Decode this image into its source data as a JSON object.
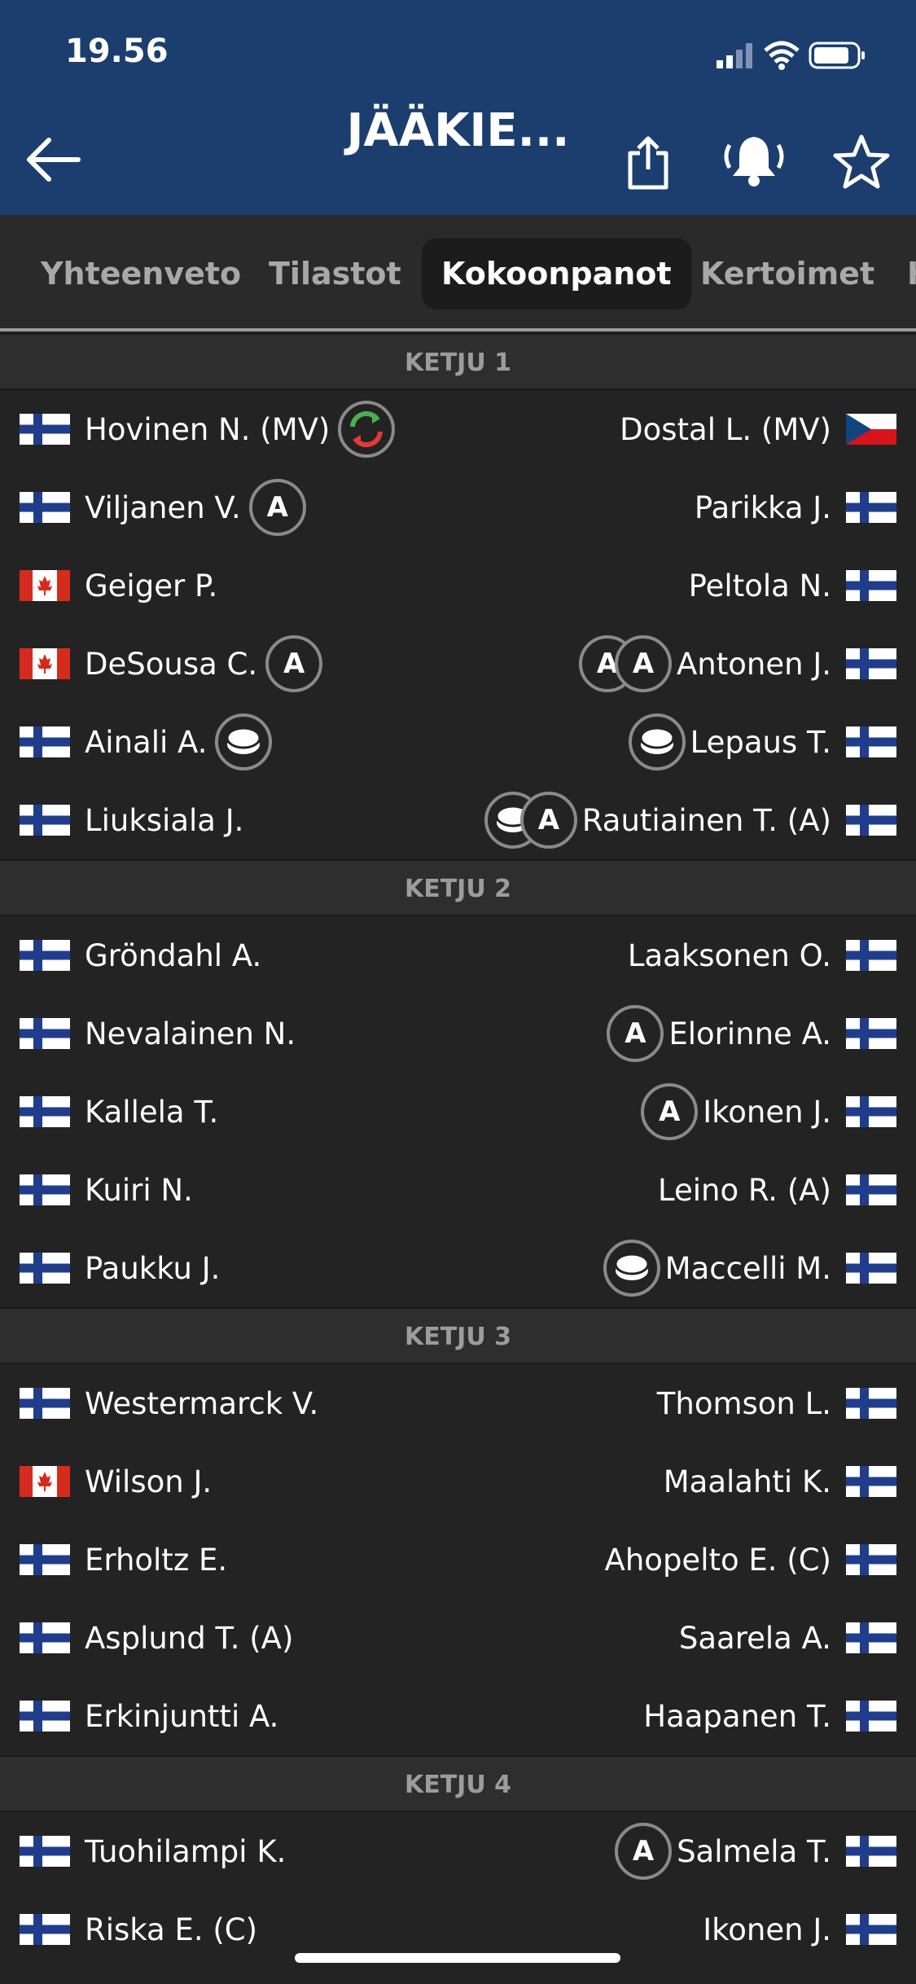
{
  "status_bar": {
    "time": "19.56"
  },
  "header": {
    "title": "JÄÄKIE..."
  },
  "tabs": {
    "items": [
      "Yhteenveto",
      "Tilastot",
      "Kokoonpanot",
      "Kertoimet",
      "K"
    ],
    "active": 2
  },
  "sections": [
    {
      "title": "KETJU 1",
      "rows": [
        {
          "left": {
            "name": "Hovinen N. (MV)",
            "flag": "fi",
            "badges": [
              "sub"
            ]
          },
          "right": {
            "name": "Dostal L. (MV)",
            "flag": "cz",
            "badges": []
          }
        },
        {
          "left": {
            "name": "Viljanen V.",
            "flag": "fi",
            "badges": [
              "A"
            ]
          },
          "right": {
            "name": "Parikka J.",
            "flag": "fi",
            "badges": []
          }
        },
        {
          "left": {
            "name": "Geiger P.",
            "flag": "ca",
            "badges": []
          },
          "right": {
            "name": "Peltola N.",
            "flag": "fi",
            "badges": []
          }
        },
        {
          "left": {
            "name": "DeSousa C.",
            "flag": "ca",
            "badges": [
              "A"
            ]
          },
          "right": {
            "name": "Antonen J.",
            "flag": "fi",
            "badges": [
              "A",
              "A"
            ]
          }
        },
        {
          "left": {
            "name": "Ainali A.",
            "flag": "fi",
            "badges": [
              "puck"
            ]
          },
          "right": {
            "name": "Lepaus T.",
            "flag": "fi",
            "badges": [
              "puck"
            ]
          }
        },
        {
          "left": {
            "name": "Liuksiala J.",
            "flag": "fi",
            "badges": []
          },
          "right": {
            "name": "Rautiainen T. (A)",
            "flag": "fi",
            "badges": [
              "puck",
              "A"
            ]
          }
        }
      ]
    },
    {
      "title": "KETJU 2",
      "rows": [
        {
          "left": {
            "name": "Gröndahl A.",
            "flag": "fi",
            "badges": []
          },
          "right": {
            "name": "Laaksonen O.",
            "flag": "fi",
            "badges": []
          }
        },
        {
          "left": {
            "name": "Nevalainen N.",
            "flag": "fi",
            "badges": []
          },
          "right": {
            "name": "Elorinne A.",
            "flag": "fi",
            "badges": [
              "A"
            ]
          }
        },
        {
          "left": {
            "name": "Kallela T.",
            "flag": "fi",
            "badges": []
          },
          "right": {
            "name": "Ikonen J.",
            "flag": "fi",
            "badges": [
              "A"
            ]
          }
        },
        {
          "left": {
            "name": "Kuiri N.",
            "flag": "fi",
            "badges": []
          },
          "right": {
            "name": "Leino R. (A)",
            "flag": "fi",
            "badges": []
          }
        },
        {
          "left": {
            "name": "Paukku J.",
            "flag": "fi",
            "badges": []
          },
          "right": {
            "name": "Maccelli M.",
            "flag": "fi",
            "badges": [
              "puck"
            ]
          }
        }
      ]
    },
    {
      "title": "KETJU 3",
      "rows": [
        {
          "left": {
            "name": "Westermarck V.",
            "flag": "fi",
            "badges": []
          },
          "right": {
            "name": "Thomson L.",
            "flag": "fi",
            "badges": []
          }
        },
        {
          "left": {
            "name": "Wilson J.",
            "flag": "ca",
            "badges": []
          },
          "right": {
            "name": "Maalahti K.",
            "flag": "fi",
            "badges": []
          }
        },
        {
          "left": {
            "name": "Erholtz E.",
            "flag": "fi",
            "badges": []
          },
          "right": {
            "name": "Ahopelto E. (C)",
            "flag": "fi",
            "badges": []
          }
        },
        {
          "left": {
            "name": "Asplund T. (A)",
            "flag": "fi",
            "badges": []
          },
          "right": {
            "name": "Saarela A.",
            "flag": "fi",
            "badges": []
          }
        },
        {
          "left": {
            "name": "Erkinjuntti A.",
            "flag": "fi",
            "badges": []
          },
          "right": {
            "name": "Haapanen T.",
            "flag": "fi",
            "badges": []
          }
        }
      ]
    },
    {
      "title": "KETJU 4",
      "rows": [
        {
          "left": {
            "name": "Tuohilampi K.",
            "flag": "fi",
            "badges": []
          },
          "right": {
            "name": "Salmela T.",
            "flag": "fi",
            "badges": [
              "A"
            ]
          }
        },
        {
          "left": {
            "name": "Riska E. (C)",
            "flag": "fi",
            "badges": []
          },
          "right": {
            "name": "Ikonen J.",
            "flag": "fi",
            "badges": []
          }
        }
      ]
    }
  ]
}
